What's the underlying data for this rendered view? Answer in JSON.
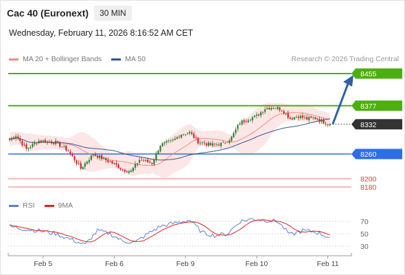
{
  "header": {
    "title": "Cac 40 (Euronext)",
    "interval": "30 MIN",
    "datetime": "Wednesday, February 11, 2026 8:16:52 AM CET"
  },
  "legend": {
    "items": [
      {
        "label": "MA 20 + Bollinger Bands",
        "color": "#f28b82"
      },
      {
        "label": "MA 50",
        "color": "#2f5597"
      }
    ],
    "copyright": "Research © 2026 Trading Central"
  },
  "rsi_legend": {
    "items": [
      {
        "label": "RSI",
        "color": "#5b7fd6"
      },
      {
        "label": "9MA",
        "color": "#e02020"
      }
    ]
  },
  "colors": {
    "resistance": "#4caf10",
    "support_blue": "#2d6ee6",
    "support_red": "#f4a3a3",
    "current": "#333333",
    "candle_up": "#2e7d32",
    "candle_down": "#c62828",
    "band_fill": "#fde3e3",
    "arrow": "#2f5fa8"
  },
  "chart_data": [
    {
      "type": "candlestick",
      "x_tick_labels": [
        "Feb 5",
        "Feb 6",
        "Feb 9",
        "Feb 10",
        "Feb 11"
      ],
      "ylim": [
        8160,
        8470
      ],
      "levels": [
        {
          "value": 8455,
          "label": "8455",
          "kind": "resistance"
        },
        {
          "value": 8377,
          "label": "8377",
          "kind": "resistance"
        },
        {
          "value": 8332,
          "label": "8332",
          "kind": "current"
        },
        {
          "value": 8260,
          "label": "8260",
          "kind": "support_blue"
        },
        {
          "value": 8200,
          "label": "8200",
          "kind": "support_red"
        },
        {
          "value": 8180,
          "label": "8180",
          "kind": "support_red"
        }
      ],
      "anchors": [
        {
          "t": 0,
          "v": 8295
        },
        {
          "t": 3,
          "v": 8305
        },
        {
          "t": 8,
          "v": 8272
        },
        {
          "t": 14,
          "v": 8292
        },
        {
          "t": 22,
          "v": 8288
        },
        {
          "t": 28,
          "v": 8268
        },
        {
          "t": 34,
          "v": 8225
        },
        {
          "t": 40,
          "v": 8260
        },
        {
          "t": 46,
          "v": 8245
        },
        {
          "t": 50,
          "v": 8236
        },
        {
          "t": 54,
          "v": 8222
        },
        {
          "t": 58,
          "v": 8218
        },
        {
          "t": 62,
          "v": 8246
        },
        {
          "t": 68,
          "v": 8238
        },
        {
          "t": 72,
          "v": 8282
        },
        {
          "t": 78,
          "v": 8292
        },
        {
          "t": 82,
          "v": 8308
        },
        {
          "t": 86,
          "v": 8312
        },
        {
          "t": 90,
          "v": 8290
        },
        {
          "t": 96,
          "v": 8282
        },
        {
          "t": 102,
          "v": 8285
        },
        {
          "t": 106,
          "v": 8300
        },
        {
          "t": 110,
          "v": 8336
        },
        {
          "t": 114,
          "v": 8345
        },
        {
          "t": 118,
          "v": 8352
        },
        {
          "t": 122,
          "v": 8370
        },
        {
          "t": 126,
          "v": 8374
        },
        {
          "t": 130,
          "v": 8368
        },
        {
          "t": 134,
          "v": 8346
        },
        {
          "t": 138,
          "v": 8352
        },
        {
          "t": 142,
          "v": 8345
        },
        {
          "t": 146,
          "v": 8347
        },
        {
          "t": 150,
          "v": 8338
        },
        {
          "t": 153,
          "v": 8332
        }
      ],
      "projection": {
        "from": 8332,
        "to": 8455
      }
    },
    {
      "type": "line",
      "name": "RSI",
      "y_tick_labels": [
        "70",
        "50",
        "30"
      ],
      "ylim": [
        20,
        80
      ],
      "rsi_anchors": [
        {
          "t": 0,
          "v": 62
        },
        {
          "t": 6,
          "v": 58
        },
        {
          "t": 14,
          "v": 55
        },
        {
          "t": 22,
          "v": 50
        },
        {
          "t": 30,
          "v": 40
        },
        {
          "t": 36,
          "v": 32
        },
        {
          "t": 42,
          "v": 55
        },
        {
          "t": 48,
          "v": 50
        },
        {
          "t": 54,
          "v": 38
        },
        {
          "t": 60,
          "v": 36
        },
        {
          "t": 66,
          "v": 50
        },
        {
          "t": 72,
          "v": 62
        },
        {
          "t": 80,
          "v": 68
        },
        {
          "t": 86,
          "v": 72
        },
        {
          "t": 92,
          "v": 52
        },
        {
          "t": 98,
          "v": 47
        },
        {
          "t": 104,
          "v": 50
        },
        {
          "t": 110,
          "v": 70
        },
        {
          "t": 116,
          "v": 74
        },
        {
          "t": 122,
          "v": 72
        },
        {
          "t": 128,
          "v": 70
        },
        {
          "t": 134,
          "v": 48
        },
        {
          "t": 140,
          "v": 55
        },
        {
          "t": 146,
          "v": 53
        },
        {
          "t": 153,
          "v": 44
        }
      ]
    }
  ]
}
